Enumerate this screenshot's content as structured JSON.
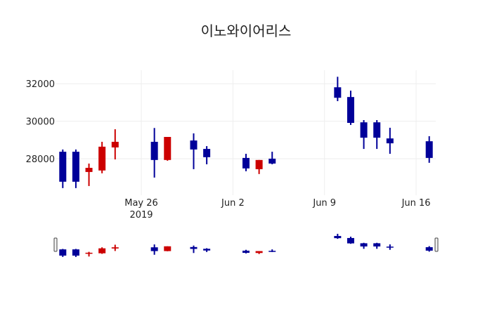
{
  "chart_data": {
    "type": "candlestick",
    "title": "이노와이어리스",
    "xlabel": "",
    "ylabel": "",
    "ylim": [
      26050,
      32720
    ],
    "y_ticks": [
      28000,
      30000,
      32000
    ],
    "y_tick_labels": [
      "28000",
      "30000",
      "32000"
    ],
    "x_tick_labels": [
      {
        "label": "May 26",
        "sub": "2019",
        "date": "2019-05-26"
      },
      {
        "label": "Jun 2",
        "sub": "",
        "date": "2019-06-02"
      },
      {
        "label": "Jun 9",
        "sub": "",
        "date": "2019-06-09"
      },
      {
        "label": "Jun 16",
        "sub": "",
        "date": "2019-06-16"
      }
    ],
    "xlim": [
      "2019-05-19T12:00",
      "2019-06-17T12:00"
    ],
    "grid": true,
    "legend": false,
    "rangeslider": true,
    "colors": {
      "increasing": "#cc0000",
      "decreasing": "#000099"
    },
    "x": [
      "2019-05-20",
      "2019-05-21",
      "2019-05-22",
      "2019-05-23",
      "2019-05-24",
      "2019-05-27",
      "2019-05-28",
      "2019-05-30",
      "2019-05-31",
      "2019-06-03",
      "2019-06-04",
      "2019-06-05",
      "2019-06-10",
      "2019-06-11",
      "2019-06-12",
      "2019-06-13",
      "2019-06-14",
      "2019-06-17"
    ],
    "open": [
      28370,
      28370,
      27290,
      27370,
      28600,
      28900,
      27930,
      28970,
      28520,
      28040,
      27440,
      28000,
      31810,
      31290,
      29940,
      29940,
      29080,
      28930
    ],
    "high": [
      28490,
      28490,
      27740,
      28900,
      29570,
      29640,
      29160,
      29350,
      28670,
      28260,
      27930,
      28370,
      32370,
      31630,
      30060,
      30060,
      29650,
      29200
    ],
    "low": [
      26430,
      26430,
      26540,
      27220,
      27960,
      26990,
      27890,
      27440,
      27700,
      27330,
      27180,
      27700,
      31070,
      29800,
      28520,
      28520,
      28260,
      27780
    ],
    "close": [
      26770,
      26770,
      27510,
      28640,
      28900,
      27930,
      29160,
      28490,
      28080,
      27480,
      27930,
      27740,
      31250,
      29910,
      29120,
      29120,
      28820,
      28040
    ]
  }
}
